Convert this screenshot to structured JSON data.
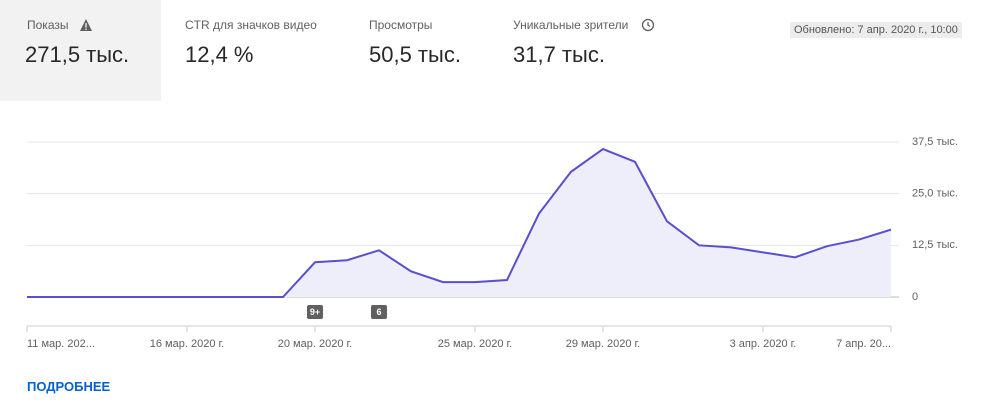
{
  "header": {
    "tabs": [
      {
        "label": "Показы",
        "value": "271,5 тыс."
      },
      {
        "label": "CTR для значков видео",
        "value": "12,4 %"
      },
      {
        "label": "Просмотры",
        "value": "50,5 тыс."
      },
      {
        "label": "Уникальные зрители",
        "value": "31,7 тыс."
      }
    ],
    "updated": "Обновлено: 7 апр. 2020 г., 10:00"
  },
  "chart_data": {
    "type": "area",
    "color": "#5a4fcf",
    "fill": "#eeedfa",
    "grid": true,
    "categories": [
      "11 мар. 202...",
      null,
      null,
      null,
      null,
      "16 мар. 2020 г.",
      null,
      null,
      null,
      "20 мар. 2020 г.",
      null,
      null,
      null,
      null,
      "25 мар. 2020 г.",
      null,
      null,
      null,
      "29 мар. 2020 г.",
      null,
      null,
      null,
      null,
      "3 апр. 2020 г.",
      null,
      null,
      null,
      "7 апр. 20..."
    ],
    "values": [
      0,
      0,
      0,
      0,
      0,
      0,
      0,
      0,
      0,
      8.4,
      8.9,
      11.3,
      6.2,
      3.6,
      3.6,
      4.1,
      20.2,
      30.3,
      35.8,
      32.7,
      18.3,
      12.5,
      12.0,
      10.8,
      9.6,
      12.3,
      13.9,
      16.3
    ],
    "markers": [
      null,
      null,
      null,
      null,
      null,
      null,
      null,
      null,
      null,
      "9+",
      null,
      "6",
      null,
      null,
      null,
      null,
      null,
      null,
      null,
      null,
      null,
      null,
      null,
      null,
      null,
      null,
      null,
      null
    ],
    "ylim": [
      0,
      37.5
    ],
    "yticks": [
      0,
      {
        "value": 12.5,
        "label": "12,5 тыс."
      },
      {
        "value": 25,
        "label": "25,0 тыс."
      },
      {
        "value": 37.5,
        "label": "37,5 тыс."
      }
    ]
  },
  "link": "ПОДРОБНЕЕ"
}
